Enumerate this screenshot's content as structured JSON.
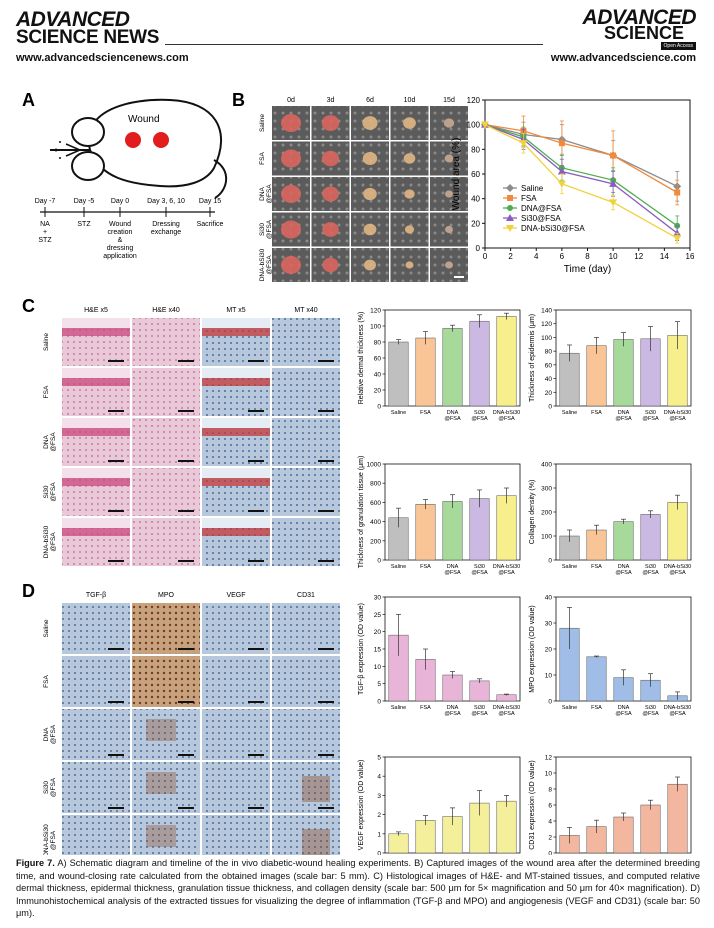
{
  "header": {
    "left_l1": "ADVANCED",
    "left_l2": "SCIENCE NEWS",
    "right_l1": "ADVANCED",
    "right_l2": "SCIENCE",
    "badge": "Open Access",
    "left_url": "www.advancedsciencenews.com",
    "right_url": "www.advancedscience.com"
  },
  "panel_a": {
    "letter": "A",
    "wound_label": "Wound",
    "timeline": [
      {
        "day": "Day -7",
        "event": "NA\n+\nSTZ"
      },
      {
        "day": "Day -5",
        "event": "STZ"
      },
      {
        "day": "Day 0",
        "event": "Wound\ncreation\n&\ndressing\napplication"
      },
      {
        "day": "Day 3, 6, 10",
        "event": "Dressing\nexchange"
      },
      {
        "day": "Day 15",
        "event": "Sacrifice"
      }
    ]
  },
  "panel_b": {
    "letter": "B",
    "col_labels": [
      "0d",
      "3d",
      "6d",
      "10d",
      "15d"
    ],
    "row_labels": [
      "Saline",
      "FSA",
      "DNA\n@FSA",
      "Si30\n@FSA",
      "DNA-bSi30\n@FSA"
    ]
  },
  "panel_c": {
    "letter": "C",
    "col_labels": [
      "H&E x5",
      "H&E x40",
      "MT x5",
      "MT x40"
    ],
    "row_labels": [
      "Saline",
      "FSA",
      "DNA\n@FSA",
      "Si30\n@FSA",
      "DNA-bSi30\n@FSA"
    ]
  },
  "panel_d": {
    "letter": "D",
    "col_labels": [
      "TGF-β",
      "MPO",
      "VEGF",
      "CD31"
    ],
    "row_labels": [
      "Saline",
      "FSA",
      "DNA\n@FSA",
      "Si30\n@FSA",
      "DNA-bSi30\n@FSA"
    ]
  },
  "colors": {
    "saline": "#8c8c8c",
    "fsa": "#f08a3c",
    "dna": "#4cae4c",
    "si30": "#8a5cc2",
    "dnabsi": "#f0d23c",
    "bar_gray": "#bfbfbf",
    "bar_orange": "#f9c596",
    "bar_green": "#a6d99a",
    "bar_purple": "#cbb8e3",
    "bar_yellow": "#f7ef8c",
    "bar_pink": "#e8b4d8",
    "bar_blue": "#9fbde6",
    "bar_lightyellow": "#f3ef9a",
    "bar_salmon": "#f3b7a0"
  },
  "chart_data": [
    {
      "type": "line",
      "id": "wound-area",
      "x": [
        0,
        3,
        6,
        10,
        15
      ],
      "xlabel": "Time (day)",
      "ylabel": "Wound area (%)",
      "xlim": [
        0,
        16
      ],
      "ylim": [
        0,
        120
      ],
      "xticks": [
        0,
        2,
        4,
        6,
        8,
        10,
        12,
        14,
        16
      ],
      "yticks": [
        0,
        20,
        40,
        60,
        80,
        100,
        120
      ],
      "legend": "bottom-left",
      "series": [
        {
          "name": "Saline",
          "values": [
            100,
            92,
            88,
            75,
            50
          ],
          "err": [
            0,
            10,
            12,
            12,
            12
          ],
          "color": "#8c8c8c",
          "marker": "diamond"
        },
        {
          "name": "FSA",
          "values": [
            100,
            95,
            85,
            75,
            45
          ],
          "err": [
            0,
            12,
            18,
            20,
            10
          ],
          "color": "#f08a3c",
          "marker": "square"
        },
        {
          "name": "DNA@FSA",
          "values": [
            100,
            90,
            65,
            55,
            18
          ],
          "err": [
            0,
            8,
            10,
            10,
            8
          ],
          "color": "#4cae4c",
          "marker": "circle"
        },
        {
          "name": "Si30@FSA",
          "values": [
            100,
            88,
            62,
            52,
            12
          ],
          "err": [
            0,
            8,
            10,
            10,
            6
          ],
          "color": "#8a5cc2",
          "marker": "triangle"
        },
        {
          "name": "DNA-bSi30@FSA",
          "values": [
            100,
            85,
            52,
            37,
            8
          ],
          "err": [
            0,
            8,
            8,
            6,
            4
          ],
          "color": "#f0d23c",
          "marker": "triangle-down"
        }
      ]
    },
    {
      "type": "bar",
      "id": "dermal",
      "categories": [
        "Saline",
        "FSA",
        "DNA\n@FSA",
        "Si30\n@FSA",
        "DNA-bSi30\n@FSA"
      ],
      "values": [
        80,
        85,
        97,
        106,
        112
      ],
      "err": [
        3,
        8,
        4,
        8,
        4
      ],
      "ylabel": "Relative dermal thickness (%)",
      "ylim": [
        0,
        120
      ],
      "yticks": [
        0,
        20,
        40,
        60,
        80,
        100,
        120
      ],
      "colors": [
        "#bfbfbf",
        "#f9c596",
        "#a6d99a",
        "#cbb8e3",
        "#f7ef8c"
      ]
    },
    {
      "type": "bar",
      "id": "epidermis",
      "categories": [
        "Saline",
        "FSA",
        "DNA\n@FSA",
        "Si30\n@FSA",
        "DNA-bSi30\n@FSA"
      ],
      "values": [
        77,
        88,
        97,
        98,
        103
      ],
      "err": [
        12,
        12,
        10,
        18,
        20
      ],
      "ylabel": "Thickness of epidermis (μm)",
      "ylim": [
        0,
        140
      ],
      "yticks": [
        0,
        20,
        40,
        60,
        80,
        100,
        120,
        140
      ],
      "colors": [
        "#bfbfbf",
        "#f9c596",
        "#a6d99a",
        "#cbb8e3",
        "#f7ef8c"
      ]
    },
    {
      "type": "bar",
      "id": "granulation",
      "categories": [
        "Saline",
        "FSA",
        "DNA\n@FSA",
        "Si30\n@FSA",
        "DNA-bSi30\n@FSA"
      ],
      "values": [
        440,
        580,
        610,
        640,
        670
      ],
      "err": [
        100,
        50,
        70,
        90,
        80
      ],
      "ylabel": "Thickness of granulation tissue (μm)",
      "ylim": [
        0,
        1000
      ],
      "yticks": [
        0,
        200,
        400,
        600,
        800,
        1000
      ],
      "colors": [
        "#bfbfbf",
        "#f9c596",
        "#a6d99a",
        "#cbb8e3",
        "#f7ef8c"
      ]
    },
    {
      "type": "bar",
      "id": "collagen",
      "categories": [
        "Saline",
        "FSA",
        "DNA\n@FSA",
        "Si30\n@FSA",
        "DNA-bSi30\n@FSA"
      ],
      "values": [
        100,
        125,
        160,
        190,
        240
      ],
      "err": [
        25,
        20,
        10,
        15,
        30
      ],
      "ylabel": "Collagen density (%)",
      "ylim": [
        0,
        400
      ],
      "yticks": [
        0,
        100,
        200,
        300,
        400
      ],
      "colors": [
        "#bfbfbf",
        "#f9c596",
        "#a6d99a",
        "#cbb8e3",
        "#f7ef8c"
      ]
    },
    {
      "type": "bar",
      "id": "tgf",
      "categories": [
        "Saline",
        "FSA",
        "DNA\n@FSA",
        "Si30\n@FSA",
        "DNA-bSi30\n@FSA"
      ],
      "values": [
        19,
        12,
        7.5,
        5.8,
        1.8
      ],
      "err": [
        6,
        3,
        1,
        0.6,
        0.2
      ],
      "ylabel": "TGF-β expression (OD value)",
      "ylim": [
        0,
        30
      ],
      "yticks": [
        0,
        5,
        10,
        15,
        20,
        25,
        30
      ],
      "colors": [
        "#e8b4d8",
        "#e8b4d8",
        "#e8b4d8",
        "#e8b4d8",
        "#e8b4d8"
      ]
    },
    {
      "type": "bar",
      "id": "mpo",
      "categories": [
        "Saline",
        "FSA",
        "DNA\n@FSA",
        "Si30\n@FSA",
        "DNA-bSi30\n@FSA"
      ],
      "values": [
        28,
        17,
        9,
        8,
        2
      ],
      "err": [
        8,
        0.3,
        3,
        2.5,
        1.5
      ],
      "ylabel": "MPO expression (OD value)",
      "ylim": [
        0,
        40
      ],
      "yticks": [
        0,
        10,
        20,
        30,
        40
      ],
      "colors": [
        "#9fbde6",
        "#9fbde6",
        "#9fbde6",
        "#9fbde6",
        "#9fbde6"
      ]
    },
    {
      "type": "bar",
      "id": "vegf",
      "categories": [
        "Saline",
        "FSA",
        "DNA\n@FSA",
        "Si30\n@FSA",
        "DNA-bSi30\n@FSA"
      ],
      "values": [
        1.0,
        1.7,
        1.9,
        2.6,
        2.7
      ],
      "err": [
        0.1,
        0.25,
        0.45,
        0.65,
        0.3
      ],
      "ylabel": "VEGF expression (OD value)",
      "ylim": [
        0,
        5
      ],
      "yticks": [
        0,
        1,
        2,
        3,
        4,
        5
      ],
      "colors": [
        "#f3ef9a",
        "#f3ef9a",
        "#f3ef9a",
        "#f3ef9a",
        "#f3ef9a"
      ]
    },
    {
      "type": "bar",
      "id": "cd31",
      "categories": [
        "Saline",
        "FSA",
        "DNA\n@FSA",
        "Si30\n@FSA",
        "DNA-bSi30\n@FSA"
      ],
      "values": [
        2.2,
        3.3,
        4.5,
        6.0,
        8.6
      ],
      "err": [
        1.0,
        0.8,
        0.5,
        0.6,
        0.9
      ],
      "ylabel": "CD31 expression (OD value)",
      "ylim": [
        0,
        12
      ],
      "yticks": [
        0,
        2,
        4,
        6,
        8,
        10,
        12
      ],
      "colors": [
        "#f3b7a0",
        "#f3b7a0",
        "#f3b7a0",
        "#f3b7a0",
        "#f3b7a0"
      ]
    }
  ],
  "caption": {
    "label": "Figure 7.",
    "text": " A) Schematic diagram and timeline of the in vivo diabetic-wound healing experiments. B) Captured images of the wound area after the determined breeding time, and wound-closing rate calculated from the obtained images (scale bar: 5 mm). C) Histological images of H&E- and MT-stained tissues, and computed relative dermal thickness, epidermal thickness, granulation tissue thickness, and collagen density (scale bar: 500 μm for 5× magnification and 50 μm for 40× magnification). D) Immunohistochemical analysis of the extracted tissues for visualizing the degree of inflammation (TGF-β and MPO) and angiogenesis (VEGF and CD31) (scale bar: 50 μm)."
  }
}
